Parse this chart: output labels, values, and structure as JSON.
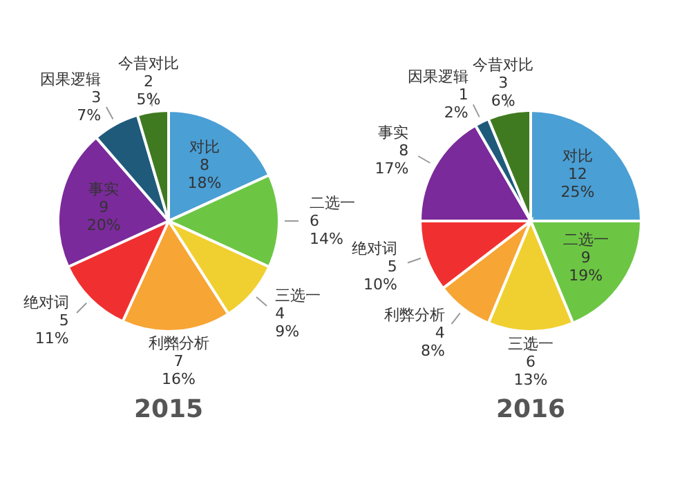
{
  "chart_data": [
    {
      "type": "pie",
      "title": "2015",
      "categories": [
        "对比",
        "二选一",
        "三选一",
        "利弊分析",
        "绝对词",
        "事实",
        "因果逻辑",
        "今昔对比"
      ],
      "values": [
        8,
        6,
        4,
        7,
        5,
        9,
        3,
        2
      ],
      "value_labels": [
        "8\n18%",
        "6\n14%",
        "4\n9%",
        "7\n16%",
        "5\n11%",
        "9\n20%",
        "3\n7%",
        "2\n5%"
      ],
      "colors": [
        "#4a9fd5",
        "#6cc644",
        "#f0d030",
        "#f7a535",
        "#f03030",
        "#7a2a9a",
        "#1f5a7a",
        "#3f7a20"
      ]
    },
    {
      "type": "pie",
      "title": "2016",
      "categories": [
        "对比",
        "二选一",
        "三选一",
        "利弊分析",
        "绝对词",
        "事实",
        "因果逻辑",
        "今昔对比"
      ],
      "values": [
        12,
        9,
        6,
        4,
        5,
        8,
        1,
        3
      ],
      "value_labels": [
        "12\n25%",
        "9\n19%",
        "6\n13%",
        "4\n8%",
        "5\n10%",
        "8\n17%",
        "1\n2%",
        "3\n6%"
      ],
      "colors": [
        "#4a9fd5",
        "#6cc644",
        "#f0d030",
        "#f7a535",
        "#f03030",
        "#7a2a9a",
        "#1f5a7a",
        "#3f7a20"
      ]
    }
  ]
}
